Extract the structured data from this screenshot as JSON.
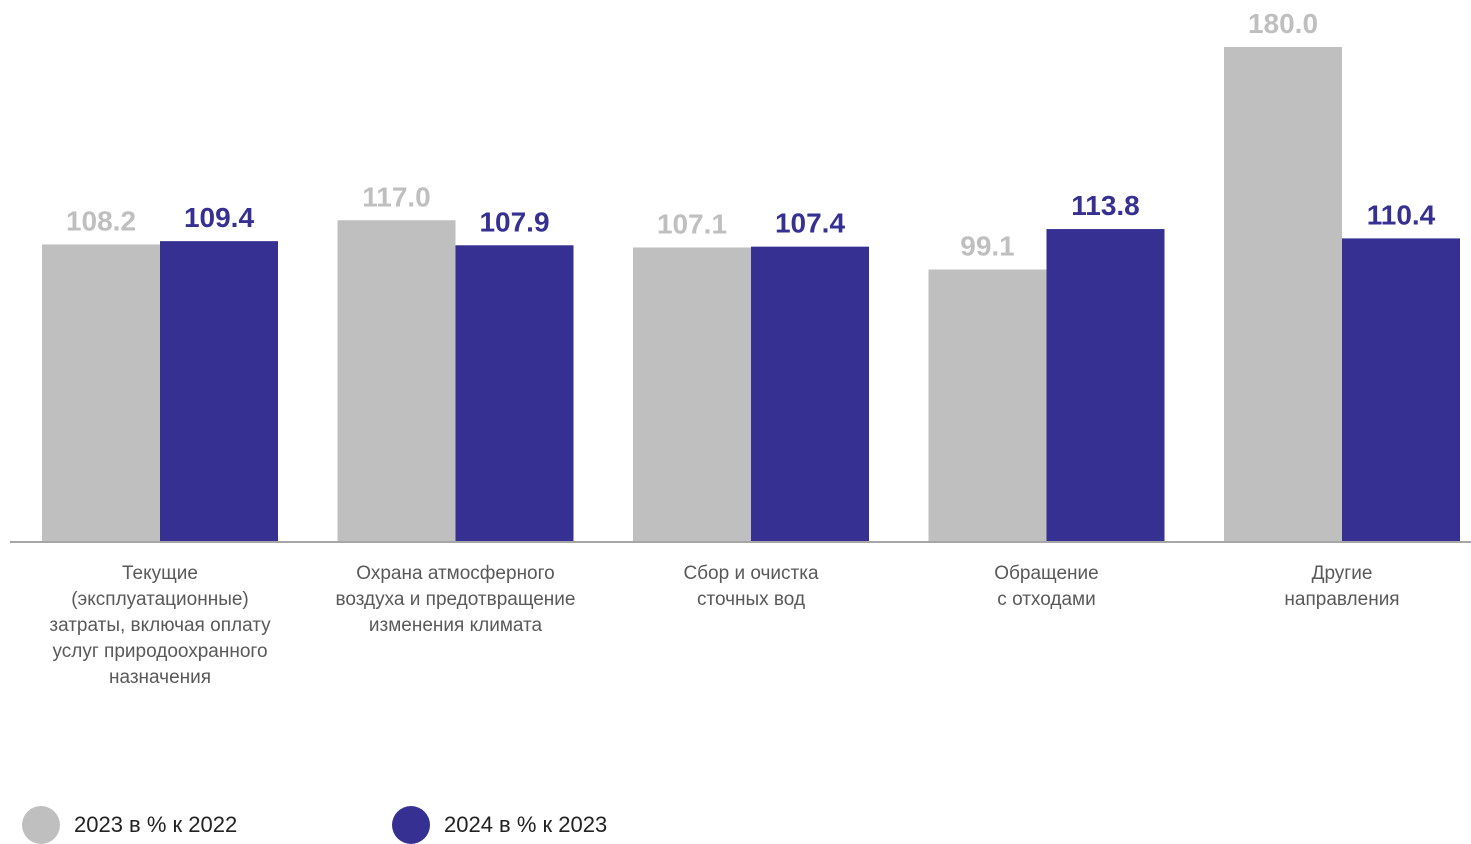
{
  "chart_data": {
    "type": "bar",
    "categories": [
      [
        "Текущие",
        "(эксплуатационные)",
        "затраты, включая оплату",
        "услуг природоохранного",
        "назначения"
      ],
      [
        "Охрана атмосферного",
        "воздуха и предотвращение",
        "изменения климата"
      ],
      [
        "Сбор и очистка",
        "сточных вод"
      ],
      [
        "Обращение",
        "с отходами"
      ],
      [
        "Другие",
        "направления"
      ]
    ],
    "series": [
      {
        "name": "2023 в % к 2022",
        "color": "#bfbfbf",
        "label_color": "#bfbfbf",
        "values": [
          108.2,
          117.0,
          107.1,
          99.1,
          180.0
        ],
        "labels": [
          "108.2",
          "117.0",
          "107.1",
          "99.1",
          "180.0"
        ]
      },
      {
        "name": "2024 в % к 2023",
        "color": "#363092",
        "label_color": "#363092",
        "values": [
          109.4,
          107.9,
          107.4,
          113.8,
          110.4
        ],
        "labels": [
          "109.4",
          "107.9",
          "107.4",
          "113.8",
          "110.4"
        ]
      }
    ],
    "ylim": [
      0,
      180
    ],
    "grid": false,
    "legend_position": "bottom-left",
    "axis_color": "#a6a6a6"
  }
}
